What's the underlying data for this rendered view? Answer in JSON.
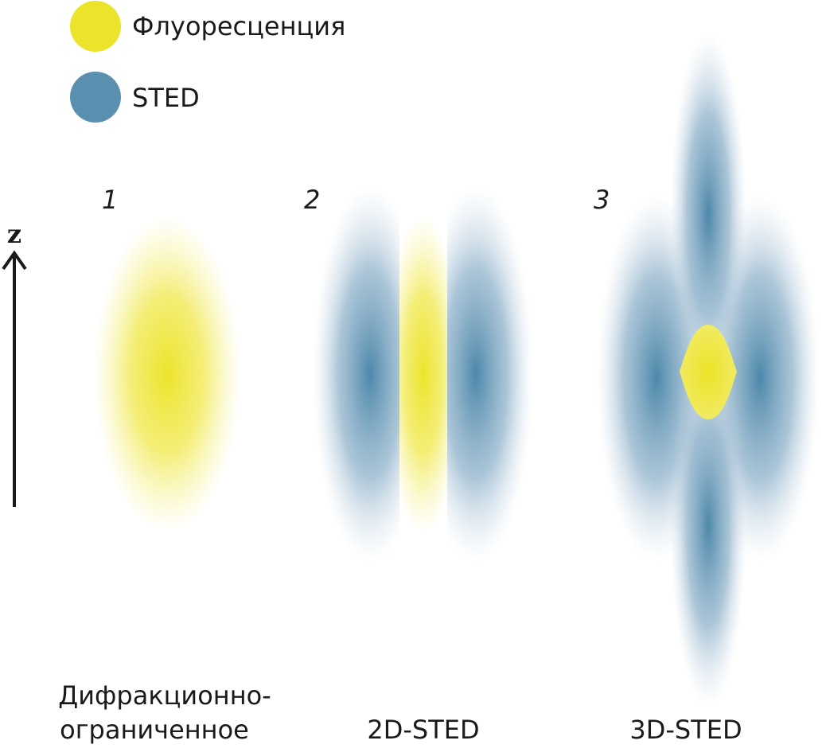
{
  "legend": [
    {
      "label": "Флуоресценция",
      "color": "#ece42a"
    },
    {
      "label": "STED",
      "color": "#5a8fb0"
    }
  ],
  "axis": {
    "label": "z",
    "icon": "arrow-up-icon"
  },
  "panels": [
    {
      "number": "1",
      "caption_line1": "Дифракционно-",
      "caption_line2": "ограниченное"
    },
    {
      "number": "2",
      "caption_line1": "2D-STED"
    },
    {
      "number": "3",
      "caption_line1": "3D-STED"
    }
  ],
  "colors": {
    "fluorescence": "#ece42a",
    "sted": "#5a8fb0",
    "text": "#1a1a1a"
  }
}
